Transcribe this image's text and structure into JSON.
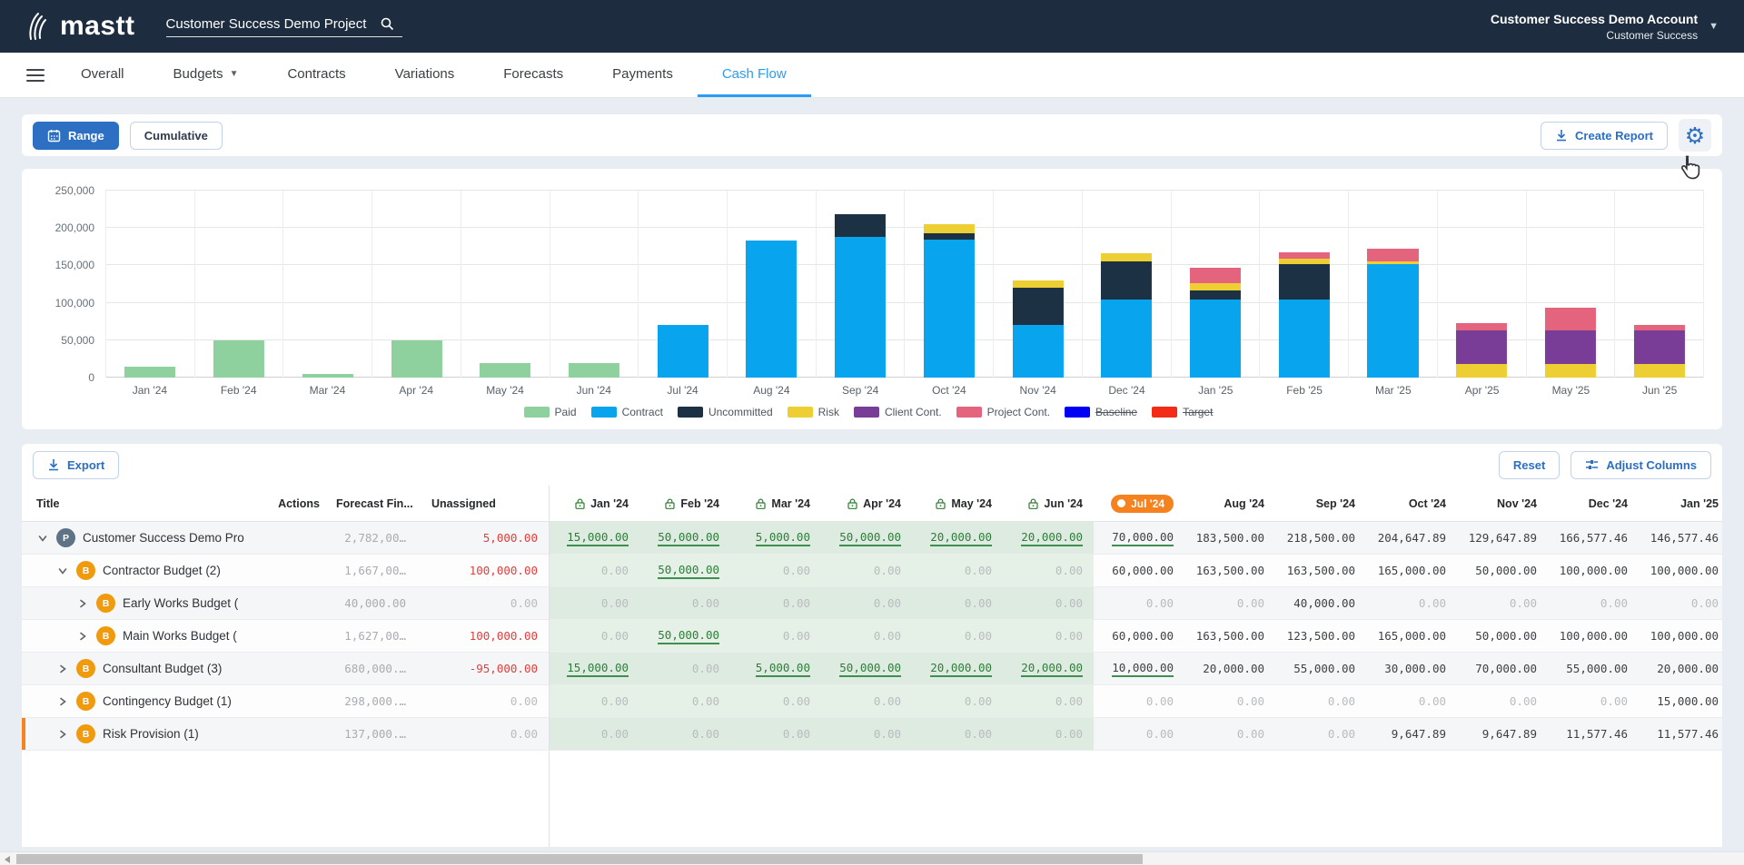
{
  "header": {
    "logo_text": "mastt",
    "search_value": "Customer Success Demo Project",
    "account_name": "Customer Success Demo Account",
    "account_sub": "Customer Success"
  },
  "nav": {
    "items": [
      {
        "label": "Overall",
        "active": false,
        "has_dropdown": false
      },
      {
        "label": "Budgets",
        "active": false,
        "has_dropdown": true
      },
      {
        "label": "Contracts",
        "active": false,
        "has_dropdown": false
      },
      {
        "label": "Variations",
        "active": false,
        "has_dropdown": false
      },
      {
        "label": "Forecasts",
        "active": false,
        "has_dropdown": false
      },
      {
        "label": "Payments",
        "active": false,
        "has_dropdown": false
      },
      {
        "label": "Cash Flow",
        "active": true,
        "has_dropdown": false
      }
    ]
  },
  "toolbar": {
    "range_label": "Range",
    "cumulative_label": "Cumulative",
    "create_report_label": "Create Report"
  },
  "chart_data": {
    "type": "bar",
    "stacked": true,
    "title": "",
    "xlabel": "",
    "ylabel": "",
    "ylim": [
      0,
      250000
    ],
    "ytick_labels": [
      "0",
      "50,000",
      "100,000",
      "150,000",
      "200,000",
      "250,000"
    ],
    "grid": true,
    "legend_position": "bottom",
    "categories": [
      "Jan '24",
      "Feb '24",
      "Mar '24",
      "Apr '24",
      "May '24",
      "Jun '24",
      "Jul '24",
      "Aug '24",
      "Sep '24",
      "Oct '24",
      "Nov '24",
      "Dec '24",
      "Jan '25",
      "Feb '25",
      "Mar '25",
      "Apr '25",
      "May '25",
      "Jun '25"
    ],
    "series": [
      {
        "name": "Paid",
        "color": "#8fd19e",
        "values": [
          15000,
          50000,
          5000,
          50000,
          20000,
          20000,
          0,
          0,
          0,
          0,
          0,
          0,
          0,
          0,
          0,
          0,
          0,
          0
        ]
      },
      {
        "name": "Contract",
        "color": "#09a4ee",
        "values": [
          0,
          0,
          0,
          0,
          0,
          0,
          70000,
          183500,
          188500,
          185000,
          70000,
          105000,
          105000,
          105000,
          152000,
          0,
          0,
          0
        ]
      },
      {
        "name": "Uncommitted",
        "color": "#1c3144",
        "values": [
          0,
          0,
          0,
          0,
          0,
          0,
          0,
          0,
          30000,
          8000,
          50000,
          50000,
          11500,
          47000,
          0,
          0,
          0,
          0
        ]
      },
      {
        "name": "Risk",
        "color": "#eecf33",
        "values": [
          0,
          0,
          0,
          0,
          0,
          0,
          0,
          0,
          0,
          11648,
          9648,
          11577,
          10000,
          7000,
          3000,
          18000,
          18000,
          18000
        ]
      },
      {
        "name": "Client Cont.",
        "color": "#7a3d97",
        "values": [
          0,
          0,
          0,
          0,
          0,
          0,
          0,
          0,
          0,
          0,
          0,
          0,
          0,
          0,
          0,
          45000,
          45000,
          45000
        ]
      },
      {
        "name": "Project Cont.",
        "color": "#e4647d",
        "values": [
          0,
          0,
          0,
          0,
          0,
          0,
          0,
          0,
          0,
          0,
          0,
          0,
          20000,
          8000,
          17000,
          10000,
          30000,
          8000
        ]
      }
    ],
    "legend_extra": [
      {
        "label": "Baseline",
        "color": "#0000f5",
        "strike": true
      },
      {
        "label": "Target",
        "color": "#f32b17",
        "strike": true
      }
    ]
  },
  "table": {
    "export_label": "Export",
    "reset_label": "Reset",
    "adjust_columns_label": "Adjust Columns",
    "columns": {
      "title": "Title",
      "actions": "Actions",
      "forecast": "Forecast Fin...",
      "unassigned": "Unassigned"
    },
    "locked_months": [
      "Jan '24",
      "Feb '24",
      "Mar '24",
      "Apr '24",
      "May '24",
      "Jun '24"
    ],
    "current_month": "Jul '24",
    "future_months": [
      "Aug '24",
      "Sep '24",
      "Oct '24",
      "Nov '24",
      "Dec '24",
      "Jan '25"
    ],
    "rows": [
      {
        "level": 0,
        "badge": "P",
        "expanded": true,
        "marker": false,
        "title": "Customer Success Demo Pro",
        "forecast": "2,782,00…",
        "unassigned": "5,000.00",
        "unassigned_alert": true,
        "locked": [
          "15,000.00",
          "50,000.00",
          "5,000.00",
          "50,000.00",
          "20,000.00",
          "20,000.00"
        ],
        "current": "70,000.00",
        "current_underline": true,
        "future": [
          "183,500.00",
          "218,500.00",
          "204,647.89",
          "129,647.89",
          "166,577.46",
          "146,577.46"
        ]
      },
      {
        "level": 1,
        "badge": "B",
        "expanded": true,
        "marker": false,
        "title": "Contractor Budget (2)",
        "forecast": "1,667,00…",
        "unassigned": "100,000.00",
        "unassigned_alert": true,
        "locked": [
          "0.00",
          "50,000.00",
          "0.00",
          "0.00",
          "0.00",
          "0.00"
        ],
        "current": "60,000.00",
        "current_underline": false,
        "future": [
          "163,500.00",
          "163,500.00",
          "165,000.00",
          "50,000.00",
          "100,000.00",
          "100,000.00"
        ]
      },
      {
        "level": 2,
        "badge": "B",
        "expanded": false,
        "marker": false,
        "title": "Early Works Budget (",
        "forecast": "40,000.00",
        "unassigned": "0.00",
        "unassigned_alert": false,
        "locked": [
          "0.00",
          "0.00",
          "0.00",
          "0.00",
          "0.00",
          "0.00"
        ],
        "current": "0.00",
        "current_underline": false,
        "future": [
          "0.00",
          "40,000.00",
          "0.00",
          "0.00",
          "0.00",
          "0.00"
        ]
      },
      {
        "level": 2,
        "badge": "B",
        "expanded": false,
        "marker": false,
        "title": "Main Works Budget (",
        "forecast": "1,627,00…",
        "unassigned": "100,000.00",
        "unassigned_alert": true,
        "locked": [
          "0.00",
          "50,000.00",
          "0.00",
          "0.00",
          "0.00",
          "0.00"
        ],
        "current": "60,000.00",
        "current_underline": false,
        "future": [
          "163,500.00",
          "123,500.00",
          "165,000.00",
          "50,000.00",
          "100,000.00",
          "100,000.00"
        ]
      },
      {
        "level": 1,
        "badge": "B",
        "expanded": false,
        "marker": false,
        "title": "Consultant Budget (3)",
        "forecast": "680,000.…",
        "unassigned": "-95,000.00",
        "unassigned_alert": true,
        "locked": [
          "15,000.00",
          "0.00",
          "5,000.00",
          "50,000.00",
          "20,000.00",
          "20,000.00"
        ],
        "current": "10,000.00",
        "current_underline": true,
        "future": [
          "20,000.00",
          "55,000.00",
          "30,000.00",
          "70,000.00",
          "55,000.00",
          "20,000.00"
        ]
      },
      {
        "level": 1,
        "badge": "B",
        "expanded": false,
        "marker": false,
        "title": "Contingency Budget (1)",
        "forecast": "298,000.…",
        "unassigned": "0.00",
        "unassigned_alert": false,
        "locked": [
          "0.00",
          "0.00",
          "0.00",
          "0.00",
          "0.00",
          "0.00"
        ],
        "current": "0.00",
        "current_underline": false,
        "future": [
          "0.00",
          "0.00",
          "0.00",
          "0.00",
          "0.00",
          "15,000.00"
        ]
      },
      {
        "level": 1,
        "badge": "B",
        "expanded": false,
        "marker": true,
        "title": "Risk Provision (1)",
        "forecast": "137,000.…",
        "unassigned": "0.00",
        "unassigned_alert": false,
        "locked": [
          "0.00",
          "0.00",
          "0.00",
          "0.00",
          "0.00",
          "0.00"
        ],
        "current": "0.00",
        "current_underline": false,
        "future": [
          "0.00",
          "0.00",
          "9,647.89",
          "9,647.89",
          "11,577.46",
          "11,577.46"
        ]
      }
    ]
  }
}
